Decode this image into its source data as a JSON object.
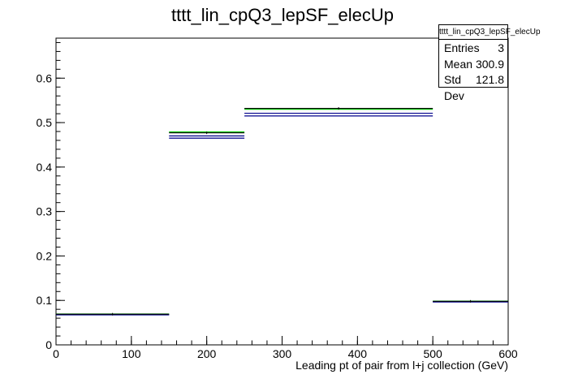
{
  "chart_data": {
    "type": "histogram",
    "title": "tttt_lin_cpQ3_lepSF_elecUp",
    "xlabel": "Leading pt of pair from l+j collection (GeV)",
    "ylabel": "",
    "xlim": [
      0,
      600
    ],
    "ylim": [
      0,
      0.69
    ],
    "x_ticks": [
      0,
      100,
      200,
      300,
      400,
      500,
      600
    ],
    "y_ticks": [
      0,
      0.1,
      0.2,
      0.3,
      0.4,
      0.5,
      0.6
    ],
    "grid": false,
    "bins": [
      {
        "x_low": 0,
        "x_high": 150,
        "value": 0.069
      },
      {
        "x_low": 150,
        "x_high": 250,
        "value": 0.477
      },
      {
        "x_low": 250,
        "x_high": 500,
        "value": 0.532
      },
      {
        "x_low": 500,
        "x_high": 600,
        "value": 0.098
      }
    ],
    "series": [
      {
        "color": "#000000",
        "values": [
          0.069,
          0.477,
          0.532,
          0.098
        ],
        "role": "nominal"
      },
      {
        "color": "#00cc00",
        "values": [
          0.0695,
          0.479,
          0.53,
          0.0985
        ],
        "role": "variation"
      },
      {
        "color": "#00008b",
        "values": [
          0.0675,
          0.465,
          0.515,
          0.0965
        ],
        "role": "variation"
      },
      {
        "color": "#00008b",
        "values": [
          0.068,
          0.47,
          0.521,
          0.097
        ],
        "role": "variation"
      }
    ]
  },
  "stats": {
    "title": "tttt_lin_cpQ3_lepSF_elecUp",
    "entries_label": "Entries",
    "entries_value": "3",
    "mean_label": "Mean",
    "mean_value": "300.9",
    "std_label": "Std Dev",
    "std_value": "121.8"
  }
}
